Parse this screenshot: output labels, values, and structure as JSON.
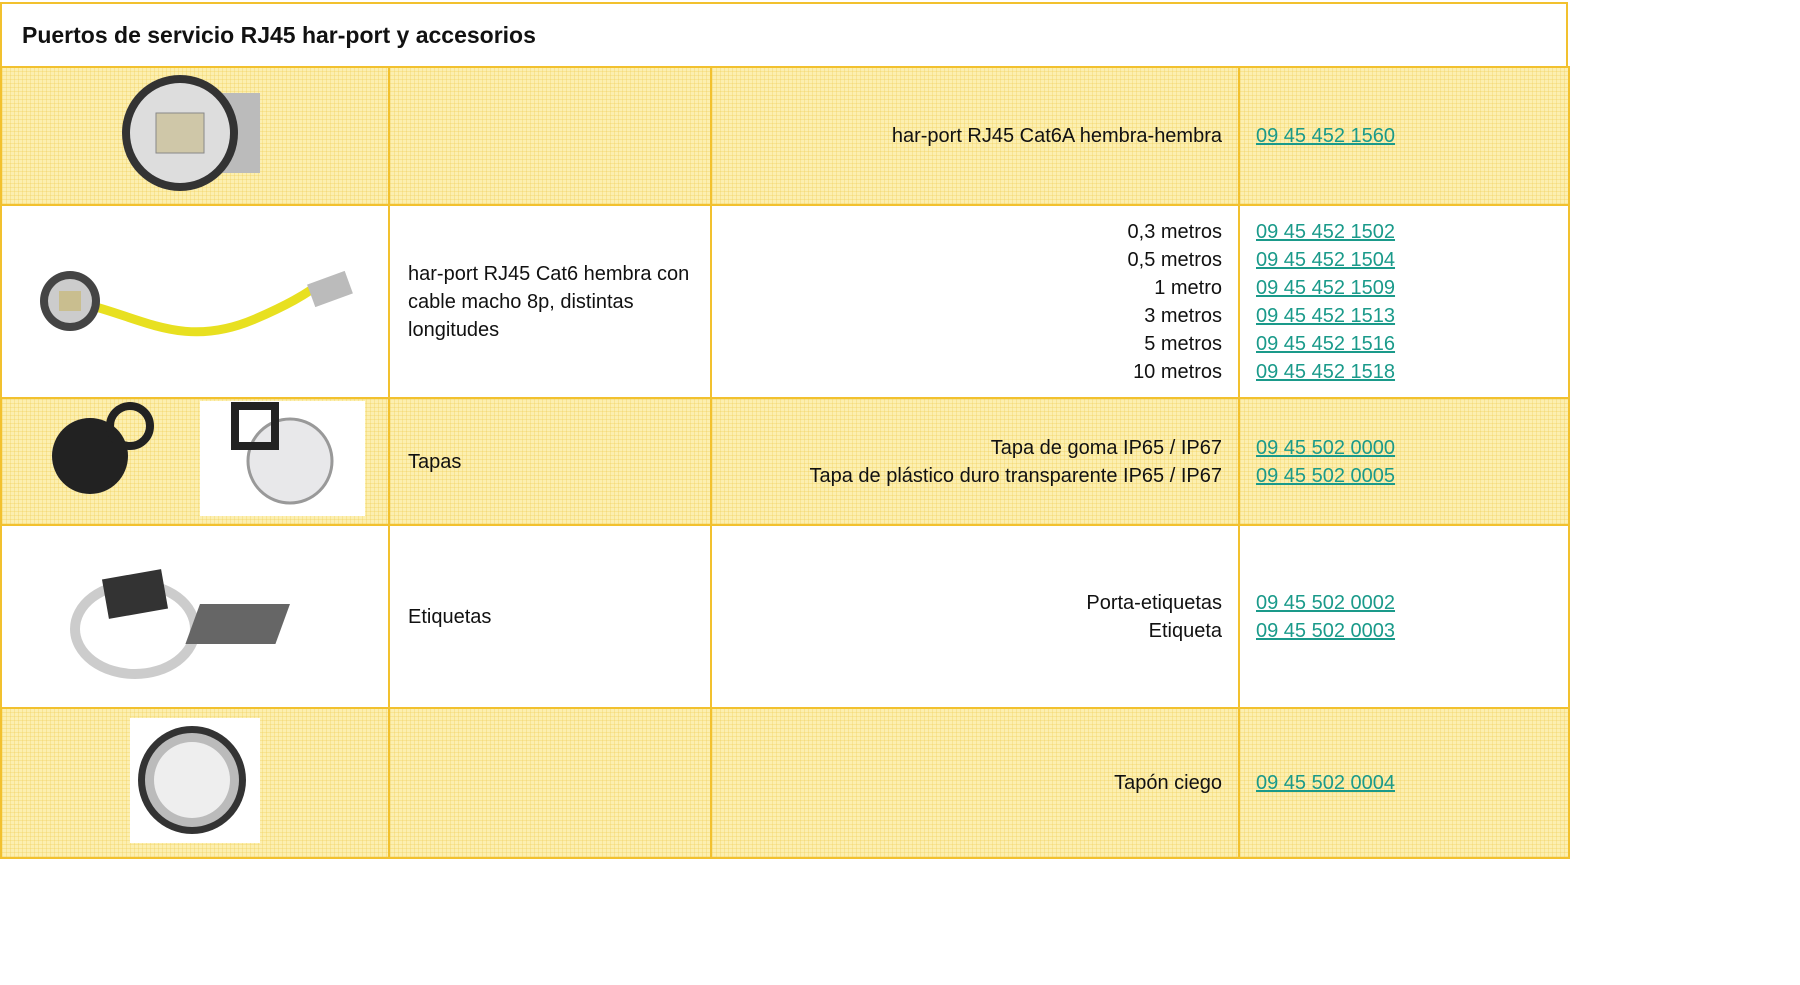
{
  "header": {
    "title": "Puertos de servicio RJ45 har-port y accesorios"
  },
  "table": {
    "rows": [
      {
        "items": [
          {
            "label": "har-port RJ45 Cat6A hembra-hembra",
            "code": "09 45 452 1560"
          }
        ]
      },
      {
        "description": "har-port RJ45 Cat6 hembra con cable macho 8p, distintas longitudes",
        "items": [
          {
            "label": "0,3 metros",
            "code": "09 45 452 1502"
          },
          {
            "label": "0,5 metros",
            "code": "09 45 452 1504"
          },
          {
            "label": "1 metro",
            "code": "09 45 452 1509"
          },
          {
            "label": "3 metros",
            "code": "09 45 452 1513"
          },
          {
            "label": "5 metros",
            "code": "09 45 452 1516"
          },
          {
            "label": "10 metros",
            "code": "09 45 452 1518"
          }
        ]
      },
      {
        "description": "Tapas",
        "items": [
          {
            "label": "Tapa de goma IP65 / IP67",
            "code": "09 45 502 0000"
          },
          {
            "label": "Tapa de plástico duro transparente IP65 / IP67",
            "code": "09 45 502 0005"
          }
        ]
      },
      {
        "description": "Etiquetas",
        "items": [
          {
            "label": "Porta-etiquetas",
            "code": "09 45 502 0002"
          },
          {
            "label": "Etiqueta",
            "code": "09 45 502 0003"
          }
        ]
      },
      {
        "items": [
          {
            "label": "Tapón ciego",
            "code": "09 45 502 0004"
          }
        ]
      }
    ]
  }
}
